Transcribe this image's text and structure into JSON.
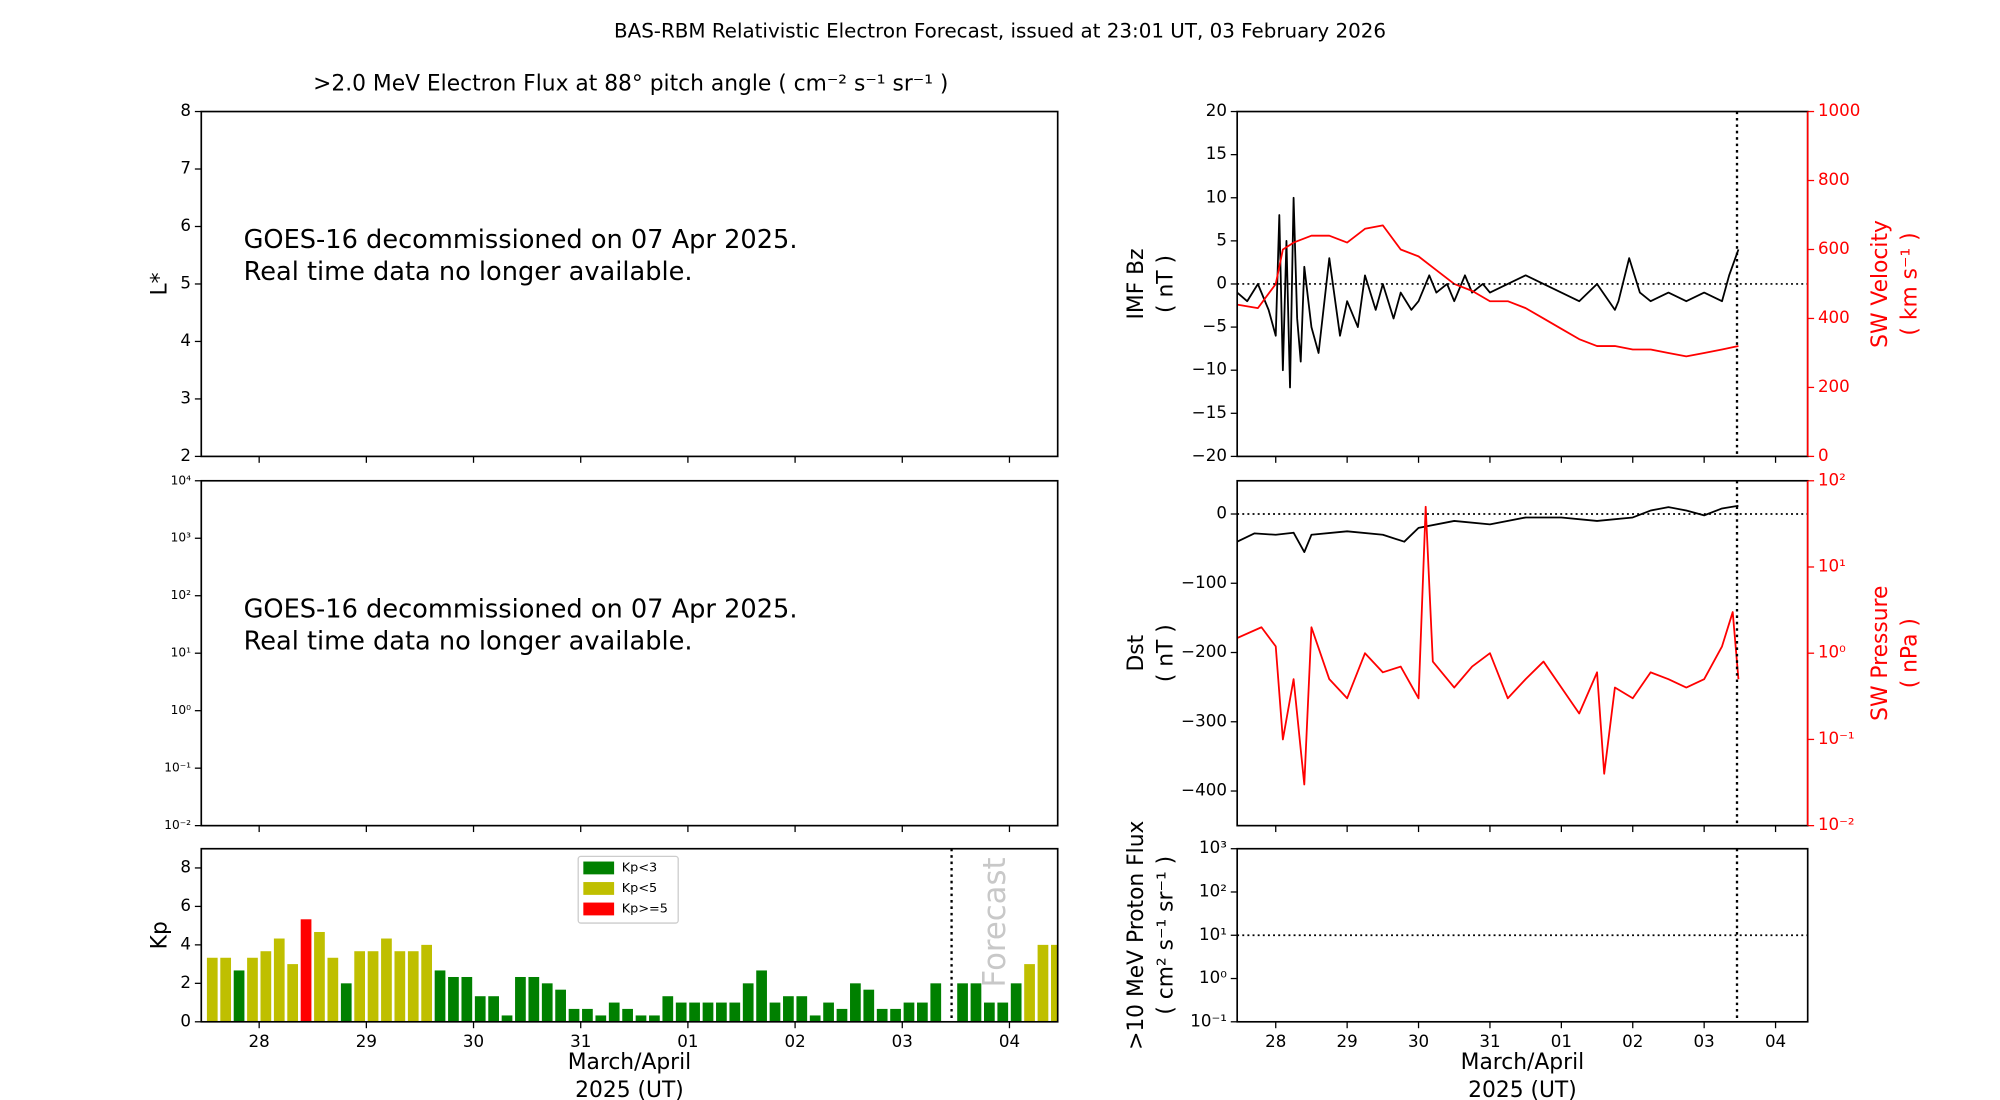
{
  "title": "BAS-RBM Relativistic Electron Forecast, issued at 23:01 UT, 03 February 2026",
  "chart_data": [
    {
      "type": "spectrogram",
      "title": ">2.0 MeV Electron Flux at 88° pitch angle ( cm⁻² s⁻¹ sr⁻¹ )",
      "ylabel": "L*",
      "xlim": [
        -0.54,
        7.45
      ],
      "ylim": [
        2,
        8
      ],
      "yticks": [
        2,
        3,
        4,
        5,
        6,
        7,
        8
      ],
      "annotation": [
        "GOES-16 decommissioned on 07 Apr 2025.",
        "Real time data no longer available."
      ]
    },
    {
      "type": "spectrogram",
      "xlim": [
        -0.54,
        7.45
      ],
      "ylim": [
        0.01,
        10000
      ],
      "ylog": true,
      "yticks": [
        {
          "value": 0.01,
          "label": "10⁻²"
        },
        {
          "value": 0.1,
          "label": "10⁻¹"
        },
        {
          "value": 1,
          "label": "10⁰"
        },
        {
          "value": 10,
          "label": "10¹"
        },
        {
          "value": 100,
          "label": "10²"
        },
        {
          "value": 1000,
          "label": "10³"
        },
        {
          "value": 10000,
          "label": "10⁴"
        }
      ],
      "annotation": [
        "GOES-16 decommissioned on 07 Apr 2025.",
        "Real time data no longer available."
      ]
    },
    {
      "type": "bar",
      "ylabel": "Kp",
      "xlabel": [
        "March/April",
        "2025 (UT)"
      ],
      "xlim": [
        -0.54,
        7.45
      ],
      "xticks": [
        {
          "value": 0,
          "label": "28"
        },
        {
          "value": 1,
          "label": "29"
        },
        {
          "value": 2,
          "label": "30"
        },
        {
          "value": 3,
          "label": "31"
        },
        {
          "value": 4,
          "label": "01"
        },
        {
          "value": 5,
          "label": "02"
        },
        {
          "value": 6,
          "label": "03"
        },
        {
          "value": 7,
          "label": "04"
        }
      ],
      "ylim": [
        0,
        9
      ],
      "yticks": [
        0,
        2,
        4,
        6,
        8
      ],
      "legend": "upper center",
      "forecast_x": 6.46,
      "forecast_label": "Forecast",
      "x": [
        -0.4375,
        -0.3125,
        -0.1875,
        -0.0625,
        0.0625,
        0.1875,
        0.3125,
        0.4375,
        0.5625,
        0.6875,
        0.8125,
        0.9375,
        1.0625,
        1.1875,
        1.3125,
        1.4375,
        1.5625,
        1.6875,
        1.8125,
        1.9375,
        2.0625,
        2.1875,
        2.3125,
        2.4375,
        2.5625,
        2.6875,
        2.8125,
        2.9375,
        3.0625,
        3.1875,
        3.3125,
        3.4375,
        3.5625,
        3.6875,
        3.8125,
        3.9375,
        4.0625,
        4.1875,
        4.3125,
        4.4375,
        4.5625,
        4.6875,
        4.8125,
        4.9375,
        5.0625,
        5.1875,
        5.3125,
        5.4375,
        5.5625,
        5.6875,
        5.8125,
        5.9375,
        6.0625,
        6.1875,
        6.3125,
        6.5625,
        6.6875,
        6.8125,
        6.9375,
        7.0625,
        7.1875,
        7.3125,
        7.4375
      ],
      "series": [
        {
          "name": "Kp<3",
          "color": "#008000",
          "values": [
            null,
            null,
            2.67,
            null,
            null,
            null,
            null,
            null,
            null,
            null,
            2.0,
            null,
            null,
            null,
            null,
            null,
            null,
            2.67,
            2.33,
            2.33,
            1.33,
            1.33,
            0.33,
            2.33,
            2.33,
            2.0,
            1.67,
            0.67,
            0.67,
            0.33,
            1.0,
            0.67,
            0.33,
            0.33,
            1.33,
            1.0,
            1.0,
            1.0,
            1.0,
            1.0,
            2.0,
            2.67,
            1.0,
            1.33,
            1.33,
            0.33,
            1.0,
            0.67,
            2.0,
            1.67,
            0.67,
            0.67,
            1.0,
            1.0,
            2.0,
            2.0,
            2.0,
            1.0,
            1.0,
            2.0,
            null,
            null,
            null
          ]
        },
        {
          "name": "Kp<5",
          "color": "#bfbf00",
          "values": [
            3.33,
            3.33,
            null,
            3.33,
            3.67,
            4.33,
            3.0,
            null,
            4.67,
            3.33,
            null,
            3.67,
            3.67,
            4.33,
            3.67,
            3.67,
            4.0,
            null,
            null,
            null,
            null,
            null,
            null,
            null,
            null,
            null,
            null,
            null,
            null,
            null,
            null,
            null,
            null,
            null,
            null,
            null,
            null,
            null,
            null,
            null,
            null,
            null,
            null,
            null,
            null,
            null,
            null,
            null,
            null,
            null,
            null,
            null,
            null,
            null,
            null,
            null,
            null,
            null,
            null,
            null,
            3.0,
            4.0,
            4.0
          ]
        },
        {
          "name": "Kp>=5",
          "color": "#ff0000",
          "values": [
            null,
            null,
            null,
            null,
            null,
            null,
            null,
            5.33,
            null,
            null,
            null,
            null,
            null,
            null,
            null,
            null,
            null,
            null,
            null,
            null,
            null,
            null,
            null,
            null,
            null,
            null,
            null,
            null,
            null,
            null,
            null,
            null,
            null,
            null,
            null,
            null,
            null,
            null,
            null,
            null,
            null,
            null,
            null,
            null,
            null,
            null,
            null,
            null,
            null,
            null,
            null,
            null,
            null,
            null,
            null,
            null,
            null,
            null,
            null,
            null,
            null,
            null,
            null
          ]
        }
      ]
    },
    {
      "type": "line",
      "ylabel": [
        "IMF Bz",
        "( nT )"
      ],
      "y2label": [
        "SW Velocity",
        "( km s⁻¹ )"
      ],
      "xlim": [
        -0.54,
        7.45
      ],
      "ylim": [
        -20,
        20
      ],
      "yticks": [
        {
          "value": -20,
          "label": "−20"
        },
        {
          "value": -15,
          "label": "−15"
        },
        {
          "value": -10,
          "label": "−10"
        },
        {
          "value": -5,
          "label": "−5"
        },
        0,
        5,
        10,
        15,
        20
      ],
      "y2lim": [
        0,
        1000
      ],
      "y2ticks": [
        0,
        200,
        400,
        600,
        800,
        1000
      ],
      "hline": 0,
      "forecast_x": 6.46,
      "series": [
        {
          "color": "#000000",
          "x": [
            -0.54,
            -0.4,
            -0.25,
            -0.1,
            0.0,
            0.05,
            0.1,
            0.15,
            0.2,
            0.25,
            0.3,
            0.35,
            0.4,
            0.5,
            0.6,
            0.75,
            0.9,
            1.0,
            1.15,
            1.25,
            1.4,
            1.5,
            1.65,
            1.75,
            1.9,
            2.0,
            2.15,
            2.25,
            2.4,
            2.5,
            2.65,
            2.75,
            2.9,
            3.0,
            3.25,
            3.5,
            3.75,
            4.0,
            4.25,
            4.5,
            4.75,
            4.8,
            4.95,
            5.1,
            5.25,
            5.5,
            5.75,
            6.0,
            6.25,
            6.35,
            6.48
          ],
          "values": [
            -1,
            -2,
            0,
            -3,
            -6,
            8,
            -10,
            5,
            -12,
            10,
            -4,
            -9,
            2,
            -5,
            -8,
            3,
            -6,
            -2,
            -5,
            1,
            -3,
            0,
            -4,
            -1,
            -3,
            -2,
            1,
            -1,
            0,
            -2,
            1,
            -1,
            0,
            -1,
            0,
            1,
            0,
            -1,
            -2,
            0,
            -3,
            -2,
            3,
            -1,
            -2,
            -1,
            -2,
            -1,
            -2,
            1,
            4
          ]
        },
        {
          "color": "#ff0000",
          "axis": "y2",
          "x": [
            -0.54,
            -0.25,
            0,
            0.1,
            0.25,
            0.5,
            0.75,
            1.0,
            1.25,
            1.5,
            1.75,
            2.0,
            2.25,
            2.5,
            2.75,
            3.0,
            3.25,
            3.5,
            3.75,
            4.0,
            4.25,
            4.5,
            4.75,
            5.0,
            5.25,
            5.5,
            5.75,
            6.0,
            6.25,
            6.48
          ],
          "values": [
            440,
            430,
            500,
            600,
            620,
            640,
            640,
            620,
            660,
            670,
            600,
            580,
            540,
            500,
            480,
            450,
            450,
            430,
            400,
            370,
            340,
            320,
            320,
            310,
            310,
            300,
            290,
            300,
            310,
            320
          ]
        }
      ]
    },
    {
      "type": "line",
      "ylabel": [
        "Dst",
        "( nT )"
      ],
      "y2label": [
        "SW Pressure",
        "( nPa )"
      ],
      "xlim": [
        -0.54,
        7.45
      ],
      "ylim": [
        -450,
        48
      ],
      "yticks": [
        {
          "value": -400,
          "label": "−400"
        },
        {
          "value": -300,
          "label": "−300"
        },
        {
          "value": -200,
          "label": "−200"
        },
        {
          "value": -100,
          "label": "−100"
        },
        0
      ],
      "y2lim": [
        0.01,
        100
      ],
      "y2log": true,
      "y2ticks": [
        {
          "value": 0.01,
          "label": "10⁻²"
        },
        {
          "value": 0.1,
          "label": "10⁻¹"
        },
        {
          "value": 1,
          "label": "10⁰"
        },
        {
          "value": 10,
          "label": "10¹"
        },
        {
          "value": 100,
          "label": "10²"
        }
      ],
      "hline": 0,
      "forecast_x": 6.46,
      "series": [
        {
          "color": "#000000",
          "x": [
            -0.54,
            -0.3,
            0,
            0.25,
            0.4,
            0.5,
            1.0,
            1.5,
            1.8,
            2.0,
            2.5,
            3.0,
            3.5,
            4.0,
            4.5,
            5.0,
            5.25,
            5.5,
            5.75,
            6.0,
            6.25,
            6.48
          ],
          "values": [
            -40,
            -28,
            -30,
            -27,
            -55,
            -30,
            -25,
            -30,
            -40,
            -20,
            -10,
            -15,
            -5,
            -5,
            -10,
            -5,
            5,
            10,
            5,
            -2,
            8,
            12
          ]
        },
        {
          "color": "#ff0000",
          "axis": "y2",
          "x": [
            -0.54,
            -0.2,
            0,
            0.1,
            0.25,
            0.4,
            0.5,
            0.75,
            1.0,
            1.25,
            1.5,
            1.75,
            2.0,
            2.1,
            2.2,
            2.5,
            2.75,
            3.0,
            3.25,
            3.5,
            3.75,
            4.0,
            4.25,
            4.5,
            4.6,
            4.75,
            5.0,
            5.25,
            5.5,
            5.75,
            6.0,
            6.25,
            6.4,
            6.48
          ],
          "values": [
            1.5,
            2,
            1.2,
            0.1,
            0.5,
            0.03,
            2,
            0.5,
            0.3,
            1.0,
            0.6,
            0.7,
            0.3,
            50,
            0.8,
            0.4,
            0.7,
            1.0,
            0.3,
            0.5,
            0.8,
            0.4,
            0.2,
            0.6,
            0.04,
            0.4,
            0.3,
            0.6,
            0.5,
            0.4,
            0.5,
            1.2,
            3,
            0.5
          ]
        }
      ]
    },
    {
      "type": "line",
      "ylabel": [
        ">10 MeV Proton Flux",
        "( cm² s⁻¹ sr⁻¹ )"
      ],
      "xlabel": [
        "March/April",
        "2025 (UT)"
      ],
      "xlim": [
        -0.54,
        7.45
      ],
      "xticks": [
        {
          "value": 0,
          "label": "28"
        },
        {
          "value": 1,
          "label": "29"
        },
        {
          "value": 2,
          "label": "30"
        },
        {
          "value": 3,
          "label": "31"
        },
        {
          "value": 4,
          "label": "01"
        },
        {
          "value": 5,
          "label": "02"
        },
        {
          "value": 6,
          "label": "03"
        },
        {
          "value": 7,
          "label": "04"
        }
      ],
      "ylim": [
        0.1,
        1000
      ],
      "ylog": true,
      "yticks": [
        {
          "value": 0.1,
          "label": "10⁻¹"
        },
        {
          "value": 1,
          "label": "10⁰"
        },
        {
          "value": 10,
          "label": "10¹"
        },
        {
          "value": 100,
          "label": "10²"
        },
        {
          "value": 1000,
          "label": "10³"
        }
      ],
      "hline": 10,
      "forecast_x": 6.46
    }
  ]
}
